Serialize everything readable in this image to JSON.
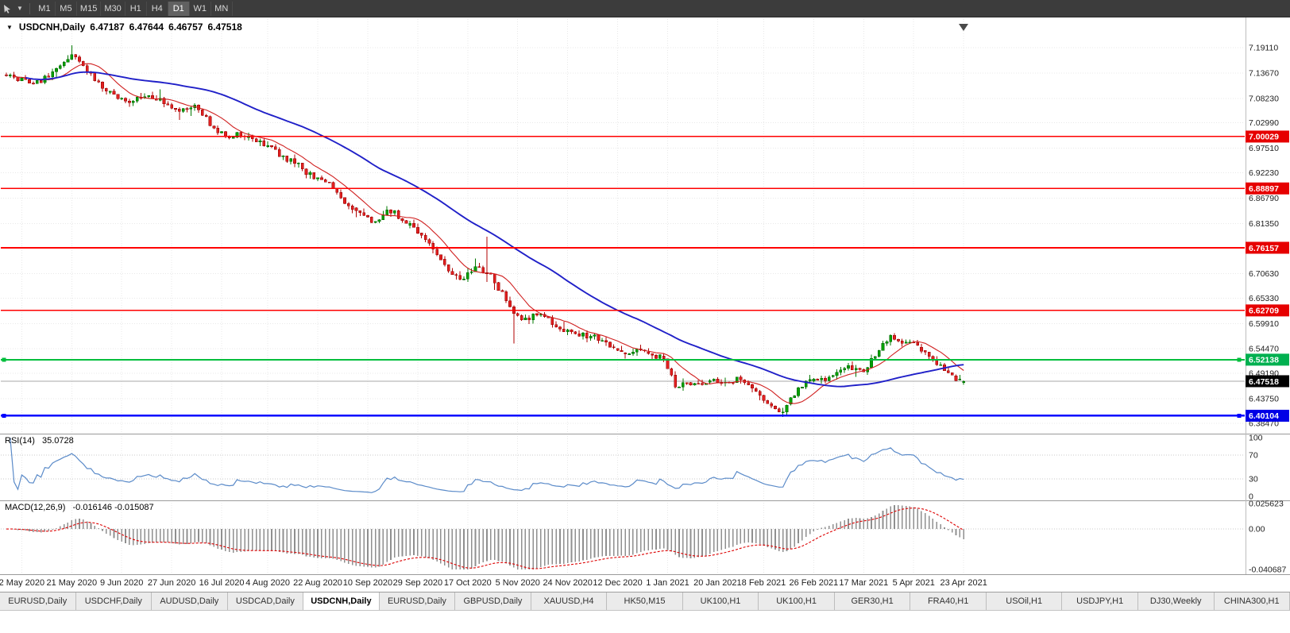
{
  "toolbar": {
    "timeframes": [
      {
        "label": "M1",
        "active": false
      },
      {
        "label": "M5",
        "active": false
      },
      {
        "label": "M15",
        "active": false
      },
      {
        "label": "M30",
        "active": false
      },
      {
        "label": "H1",
        "active": false
      },
      {
        "label": "H4",
        "active": false
      },
      {
        "label": "D1",
        "active": true
      },
      {
        "label": "W1",
        "active": false
      },
      {
        "label": "MN",
        "active": false
      }
    ]
  },
  "chart": {
    "title": {
      "symbol": "USDCNH,Daily",
      "open": "6.47187",
      "high": "6.47644",
      "low": "6.46757",
      "close": "6.47518"
    },
    "price_axis_labels": [
      "7.19110",
      "7.13670",
      "7.08230",
      "7.02990",
      "6.97510",
      "6.92230",
      "6.86790",
      "6.81350",
      "6.70630",
      "6.65330",
      "6.59910",
      "6.54470",
      "6.49190",
      "6.43750",
      "6.38470"
    ],
    "hlines": [
      {
        "value": "7.00029",
        "color": "#FF0000",
        "badge_bg": "#E60000",
        "width": 1.6,
        "handles": false
      },
      {
        "value": "6.88897",
        "color": "#FF0000",
        "badge_bg": "#E60000",
        "width": 1.6,
        "handles": false
      },
      {
        "value": "6.76157",
        "color": "#FF0000",
        "badge_bg": "#E60000",
        "width": 1.6,
        "handles": false
      },
      {
        "value": "6.62709",
        "color": "#FF0000",
        "badge_bg": "#E60000",
        "width": 1.6,
        "handles": false
      },
      {
        "value": "6.52138",
        "color": "#00BE3C",
        "badge_bg": "#00B050",
        "width": 1.8,
        "handles": true
      },
      {
        "value": "6.40104",
        "color": "#0000FF",
        "badge_bg": "#0000E6",
        "width": 2.6,
        "handles": true
      }
    ],
    "current_price": {
      "value": "6.47518",
      "badge_bg": "#000000",
      "line_color": "#A8A8A8"
    },
    "rsi": {
      "name": "RSI(14)",
      "value": "35.0728",
      "axis_labels": [
        "100",
        "70",
        "30",
        "0"
      ],
      "line_color": "#5B8BC9"
    },
    "macd": {
      "name": "MACD(12,26,9)",
      "values": "-0.016146 -0.015087",
      "axis_labels": [
        "0.025623",
        "0.00",
        "-0.040687"
      ],
      "bar_color": "#8F8F8F",
      "signal_color": "#DD0000"
    },
    "date_labels": [
      "2 May 2020",
      "21 May 2020",
      "9 Jun 2020",
      "27 Jun 2020",
      "16 Jul 2020",
      "4 Aug 2020",
      "22 Aug 2020",
      "10 Sep 2020",
      "29 Sep 2020",
      "17 Oct 2020",
      "5 Nov 2020",
      "24 Nov 2020",
      "12 Dec 2020",
      "1 Jan 2021",
      "20 Jan 2021",
      "8 Feb 2021",
      "26 Feb 2021",
      "17 Mar 2021",
      "5 Apr 2021",
      "23 Apr 2021"
    ]
  },
  "chart_data": {
    "type": "candlestick",
    "symbol": "USDCNH",
    "timeframe": "Daily",
    "num_candles": 250,
    "seed": 1337,
    "ylim": [
      6.3643,
      7.2457
    ],
    "levels": [
      7.00029,
      6.88897,
      6.76157,
      6.62709,
      6.52138,
      6.40104
    ],
    "last_candle": {
      "open": 6.47187,
      "high": 6.47644,
      "low": 6.46757,
      "close": 6.47518
    },
    "price_path": [
      [
        0,
        7.135
      ],
      [
        0.03,
        7.112
      ],
      [
        0.056,
        7.15
      ],
      [
        0.07,
        7.178
      ],
      [
        0.09,
        7.13
      ],
      [
        0.109,
        7.092
      ],
      [
        0.13,
        7.076
      ],
      [
        0.145,
        7.09
      ],
      [
        0.161,
        7.076
      ],
      [
        0.18,
        7.06
      ],
      [
        0.2,
        7.066
      ],
      [
        0.213,
        7.028
      ],
      [
        0.23,
        6.996
      ],
      [
        0.245,
        7.006
      ],
      [
        0.266,
        6.986
      ],
      [
        0.285,
        6.962
      ],
      [
        0.3,
        6.946
      ],
      [
        0.319,
        6.916
      ],
      [
        0.335,
        6.902
      ],
      [
        0.35,
        6.866
      ],
      [
        0.371,
        6.836
      ],
      [
        0.385,
        6.812
      ],
      [
        0.4,
        6.844
      ],
      [
        0.423,
        6.81
      ],
      [
        0.435,
        6.782
      ],
      [
        0.45,
        6.746
      ],
      [
        0.465,
        6.706
      ],
      [
        0.476,
        6.696
      ],
      [
        0.49,
        6.716
      ],
      [
        0.505,
        6.706
      ],
      [
        0.52,
        6.656
      ],
      [
        0.528,
        6.626
      ],
      [
        0.54,
        6.602
      ],
      [
        0.555,
        6.624
      ],
      [
        0.57,
        6.6
      ],
      [
        0.581,
        6.584
      ],
      [
        0.6,
        6.576
      ],
      [
        0.615,
        6.57
      ],
      [
        0.633,
        6.546
      ],
      [
        0.65,
        6.536
      ],
      [
        0.665,
        6.542
      ],
      [
        0.686,
        6.524
      ],
      [
        0.7,
        6.458
      ],
      [
        0.71,
        6.476
      ],
      [
        0.725,
        6.462
      ],
      [
        0.738,
        6.48
      ],
      [
        0.75,
        6.466
      ],
      [
        0.765,
        6.486
      ],
      [
        0.78,
        6.456
      ],
      [
        0.791,
        6.432
      ],
      [
        0.8,
        6.416
      ],
      [
        0.812,
        6.406
      ],
      [
        0.825,
        6.456
      ],
      [
        0.843,
        6.486
      ],
      [
        0.855,
        6.476
      ],
      [
        0.87,
        6.5
      ],
      [
        0.885,
        6.506
      ],
      [
        0.896,
        6.5
      ],
      [
        0.915,
        6.556
      ],
      [
        0.925,
        6.572
      ],
      [
        0.935,
        6.56
      ],
      [
        0.948,
        6.556
      ],
      [
        0.96,
        6.54
      ],
      [
        0.975,
        6.51
      ],
      [
        0.99,
        6.482
      ],
      [
        1,
        6.47518
      ]
    ],
    "wick_events": [
      {
        "i": 17,
        "high": 7.196
      },
      {
        "i": 125,
        "high": 6.785
      },
      {
        "i": 132,
        "low": 6.556
      },
      {
        "i": 202,
        "low": 6.398
      },
      {
        "i": 203,
        "low": 6.4
      }
    ],
    "candle_up_color": "#00A000",
    "candle_down_color": "#E02020",
    "overlays": [
      {
        "name": "ma-fast",
        "color": "#D02020",
        "period": 10
      },
      {
        "name": "ma-slow",
        "color": "#2020C8",
        "period": 45
      }
    ],
    "rsi_axis": [
      100,
      70,
      30,
      0
    ],
    "macd_axis": [
      0.025623,
      0,
      -0.040687
    ]
  },
  "tabs": [
    {
      "label": "EURUSD,Daily",
      "active": false
    },
    {
      "label": "USDCHF,Daily",
      "active": false
    },
    {
      "label": "AUDUSD,Daily",
      "active": false
    },
    {
      "label": "USDCAD,Daily",
      "active": false
    },
    {
      "label": "USDCNH,Daily",
      "active": true
    },
    {
      "label": "EURUSD,Daily",
      "active": false
    },
    {
      "label": "GBPUSD,Daily",
      "active": false
    },
    {
      "label": "XAUUSD,H4",
      "active": false
    },
    {
      "label": "HK50,M15",
      "active": false
    },
    {
      "label": "UK100,H1",
      "active": false
    },
    {
      "label": "UK100,H1",
      "active": false
    },
    {
      "label": "GER30,H1",
      "active": false
    },
    {
      "label": "FRA40,H1",
      "active": false
    },
    {
      "label": "USOil,H1",
      "active": false
    },
    {
      "label": "USDJPY,H1",
      "active": false
    },
    {
      "label": "DJ30,Weekly",
      "active": false
    },
    {
      "label": "CHINA300,H1",
      "active": false
    }
  ]
}
